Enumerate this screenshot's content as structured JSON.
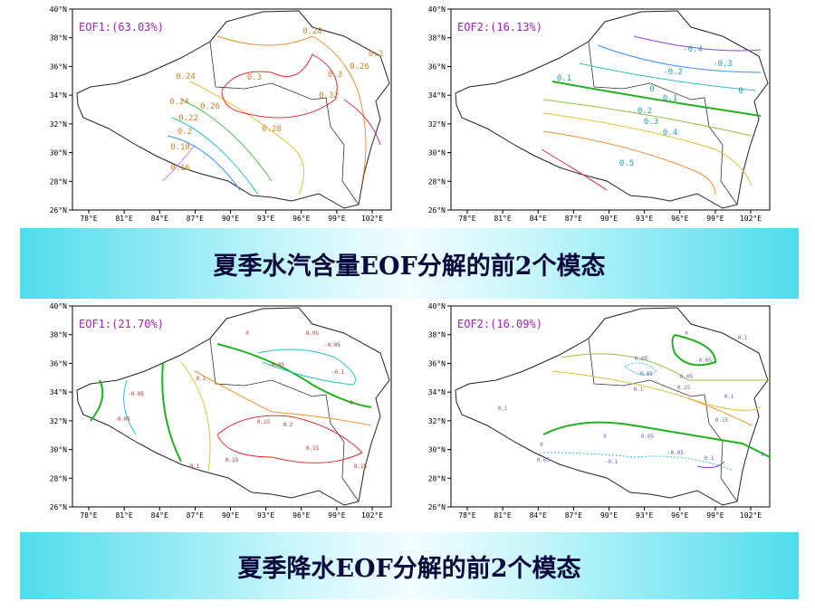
{
  "panels": [
    {
      "title": "EOF1:(63.03%)",
      "lat_labels": [
        "40°N",
        "38°N",
        "36°N",
        "34°N",
        "32°N",
        "30°N",
        "28°N",
        "26°N"
      ],
      "lon_labels": [
        "78°E",
        "81°E",
        "84°E",
        "87°E",
        "90°E",
        "93°E",
        "96°E",
        "99°E",
        "102°E"
      ],
      "contour_labels": [
        "0.28",
        "0.2",
        "0.26",
        "0.3",
        "0.3",
        "0.24",
        "0.32",
        "0.24",
        "0.26",
        "0.22",
        "0.2",
        "0.28",
        "0.18",
        "0.16"
      ]
    },
    {
      "title": "EOF2:(16.13%)",
      "lat_labels": [
        "40°N",
        "38°N",
        "36°N",
        "34°N",
        "32°N",
        "30°N",
        "28°N",
        "26°N"
      ],
      "lon_labels": [
        "78°E",
        "81°E",
        "84°E",
        "87°E",
        "90°E",
        "93°E",
        "96°E",
        "99°E",
        "102°E"
      ],
      "contour_labels": [
        "-0.4",
        "-0.2",
        "-0.3",
        "0.1",
        "0",
        "0.1",
        "0.2",
        "0.3",
        "0.4",
        "0.5",
        "0"
      ]
    },
    {
      "title": "EOF1:(21.70%)",
      "lat_labels": [
        "40°N",
        "38°N",
        "36°N",
        "34°N",
        "32°N",
        "30°N",
        "28°N",
        "26°N"
      ],
      "lon_labels": [
        "78°E",
        "81°E",
        "84°E",
        "87°E",
        "90°E",
        "93°E",
        "96°E",
        "99°E",
        "102°E"
      ],
      "contour_labels": [
        "0",
        "0.05",
        "-0.05",
        "-0.05",
        "-0.1",
        "0.1",
        "-0.05",
        "-0.05",
        "0.15",
        "0.2",
        "0.15",
        "0.1",
        "0.15",
        "0.15",
        "0"
      ]
    },
    {
      "title": "EOF2:(16.09%)",
      "lat_labels": [
        "40°N",
        "38°N",
        "36°N",
        "34°N",
        "32°N",
        "30°N",
        "28°N",
        "26°N"
      ],
      "lon_labels": [
        "78°E",
        "81°E",
        "84°E",
        "87°E",
        "90°E",
        "93°E",
        "96°E",
        "99°E",
        "102°E"
      ],
      "contour_labels": [
        "0",
        "0.1",
        "0.05",
        "-0.05",
        "-0.05",
        "0.1",
        "0.05",
        "0.15",
        "0.1",
        "0.1",
        "0.15",
        "0.05",
        "0",
        "-0.05",
        "0",
        "0.05",
        "-0.1",
        "0",
        "0.1"
      ]
    }
  ],
  "banners": [
    "夏季水汽含量EOF分解的前2个模态",
    "夏季降水EOF分解的前2个模态"
  ]
}
